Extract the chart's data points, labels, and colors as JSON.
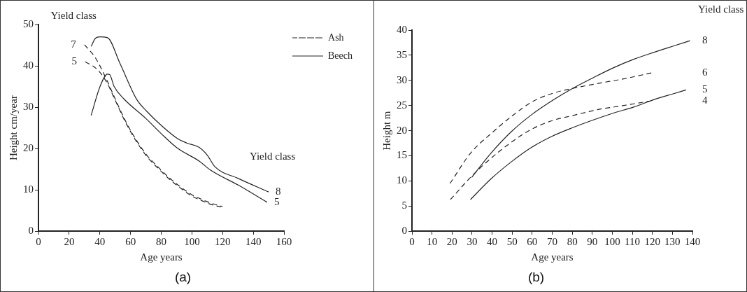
{
  "chart_data": [
    {
      "type": "line",
      "title": "(a)",
      "xlabel": "Age years",
      "ylabel": "Height cm/year",
      "xlim": [
        0,
        160
      ],
      "xticks": [
        0,
        20,
        40,
        60,
        80,
        100,
        120,
        140,
        160
      ],
      "ylim": [
        0,
        50
      ],
      "yticks": [
        0,
        10,
        20,
        30,
        40,
        50
      ],
      "grid": false,
      "legend": "top right",
      "marker": "none",
      "series": [
        {
          "name": "Ash",
          "color": "#222222",
          "line_style": "dashed",
          "x": [
            30,
            37,
            44.5,
            50,
            56,
            63,
            70.6,
            78,
            85,
            92,
            99.6,
            107,
            114,
            120
          ],
          "values": [
            45.1,
            42,
            36.6,
            32,
            27.2,
            22.5,
            18.4,
            15.5,
            13,
            10.9,
            8.9,
            7.6,
            6.6,
            6
          ]
        },
        {
          "color": "#222222",
          "line_style": "dashed",
          "x": [
            30.5,
            38.7,
            44.5,
            50,
            56,
            63,
            70.6,
            78,
            85,
            92,
            99.6,
            107,
            114,
            119
          ],
          "values": [
            41,
            39,
            36,
            31.7,
            26.9,
            22.2,
            18.1,
            15.2,
            12.7,
            10.6,
            8.6,
            7.3,
            6.3,
            5.9
          ]
        },
        {
          "name": "Beech",
          "color": "#222222",
          "line_style": "solid",
          "x": [
            34.3,
            37.2,
            40,
            45,
            53,
            64,
            70.6,
            80,
            91,
            97,
            104.6,
            110,
            115,
            130,
            150
          ],
          "values": [
            44.7,
            46.7,
            47,
            46.8,
            40.7,
            31.9,
            29,
            25.6,
            22.3,
            21.3,
            20.3,
            18.4,
            15.6,
            12.8,
            9.5
          ]
        },
        {
          "color": "#222222",
          "line_style": "solid",
          "x": [
            34.3,
            40,
            45,
            46.4,
            49.3,
            55.7,
            70.2,
            80,
            90.5,
            105,
            112,
            130,
            149
          ],
          "values": [
            28,
            34.9,
            38,
            37.9,
            35,
            32,
            27.2,
            23.6,
            20.1,
            16.9,
            14.8,
            11.2,
            7
          ]
        }
      ],
      "annotations": [
        "Yield class",
        "Yield class",
        {
          "text": "7",
          "x": 30,
          "y": 45.1
        },
        {
          "text": "5",
          "x": 30.5,
          "y": 41
        },
        {
          "text": "8",
          "x": 150,
          "y": 9.5
        },
        {
          "text": "5",
          "x": 149,
          "y": 7
        }
      ]
    },
    {
      "type": "line",
      "title": "(b)",
      "xlabel": "Age years",
      "ylabel": "Height m",
      "xlim": [
        0,
        140
      ],
      "xticks": [
        0,
        10,
        20,
        30,
        40,
        50,
        60,
        70,
        80,
        90,
        100,
        110,
        120,
        130,
        140
      ],
      "ylim": [
        0,
        40
      ],
      "yticks": [
        0,
        5,
        10,
        15,
        20,
        25,
        30,
        35,
        40
      ],
      "grid": false,
      "legend": false,
      "marker": "none",
      "series": [
        {
          "name": "6",
          "color": "#222222",
          "line_style": "dashed",
          "x": [
            19,
            29.2,
            40,
            49.6,
            59.8,
            70,
            80.2,
            92.9,
            105.6,
            119.6
          ],
          "values": [
            9.5,
            15.5,
            19.6,
            22.8,
            25.7,
            27.4,
            28.4,
            29.4,
            30.3,
            31.5
          ]
        },
        {
          "name": "4",
          "color": "#222222",
          "line_style": "dashed",
          "x": [
            19.2,
            29.2,
            39.4,
            49.6,
            59.8,
            70,
            80.2,
            92.9,
            105.6,
            119
          ],
          "values": [
            6.3,
            10.7,
            14.5,
            17.7,
            20.3,
            22,
            23,
            24.2,
            25,
            25.9
          ]
        },
        {
          "name": "8",
          "color": "#222222",
          "line_style": "solid",
          "x": [
            29.8,
            39.4,
            49.6,
            59.8,
            70.5,
            80.2,
            90.3,
            100.5,
            110.7,
            120.9,
            131,
            138.8
          ],
          "values": [
            10.7,
            15.5,
            19.8,
            23.2,
            26.1,
            28.4,
            30.5,
            32.5,
            34.2,
            35.6,
            36.9,
            37.9
          ]
        },
        {
          "name": "5",
          "color": "#222222",
          "line_style": "solid",
          "x": [
            29.2,
            39.4,
            49.6,
            59.8,
            70,
            80.2,
            90.3,
            100.5,
            110.7,
            120.9,
            131,
            136.8
          ],
          "values": [
            6.3,
            10.4,
            13.8,
            16.7,
            18.9,
            20.6,
            22.1,
            23.5,
            24.7,
            26.2,
            27.4,
            28.1
          ]
        }
      ],
      "annotations": [
        "Yield class"
      ]
    }
  ]
}
